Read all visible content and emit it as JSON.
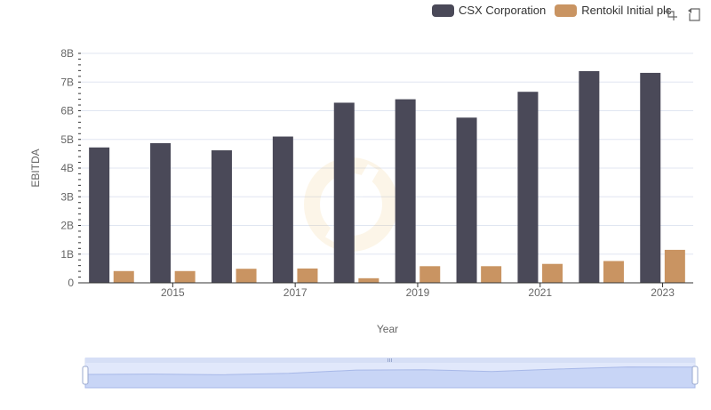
{
  "legend": {
    "items": [
      {
        "label": "CSX Corporation",
        "color": "#4a4958"
      },
      {
        "label": "Rentokil Initial plc",
        "color": "#c99462"
      }
    ]
  },
  "toolbox": {
    "icons": [
      "zoom-icon",
      "zoom-reset-icon"
    ]
  },
  "chart_data": {
    "type": "bar",
    "categories": [
      "2014",
      "2015",
      "2016",
      "2017",
      "2018",
      "2019",
      "2020",
      "2021",
      "2022",
      "2023"
    ],
    "x_tick_labels": [
      "2015",
      "2017",
      "2019",
      "2021",
      "2023"
    ],
    "series": [
      {
        "name": "CSX Corporation",
        "color": "#4a4958",
        "values": [
          4.72,
          4.87,
          4.62,
          5.1,
          6.28,
          6.4,
          5.76,
          6.66,
          7.38,
          7.32
        ]
      },
      {
        "name": "Rentokil Initial plc",
        "color": "#c99462",
        "values": [
          0.41,
          0.41,
          0.49,
          0.5,
          0.16,
          0.58,
          0.58,
          0.66,
          0.76,
          1.15
        ]
      }
    ],
    "xlabel": "Year",
    "ylabel": "EBITDA",
    "ylim": [
      0,
      8
    ],
    "y_ticks": [
      0,
      1,
      2,
      3,
      4,
      5,
      6,
      7,
      8
    ],
    "y_tick_labels": [
      "0",
      "1B",
      "2B",
      "3B",
      "4B",
      "5B",
      "6B",
      "7B",
      "8B"
    ],
    "grid": true,
    "legend_position": "top-right",
    "data_zoom": {
      "start_percent": 0,
      "end_percent": 100
    }
  }
}
